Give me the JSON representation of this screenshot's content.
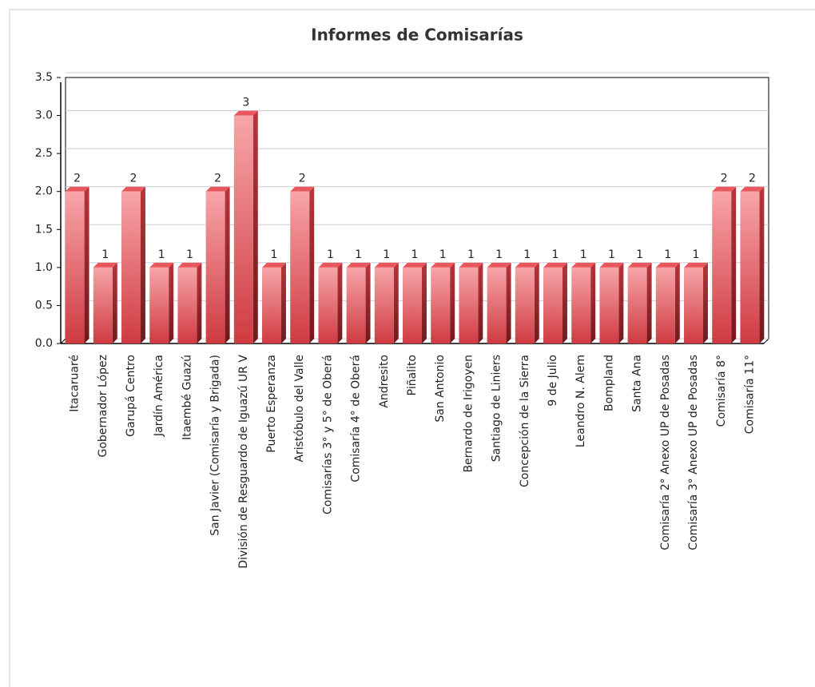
{
  "chart_data": {
    "type": "bar",
    "title": "Informes de Comisarías",
    "categories": [
      "Itacaruaré",
      "Gobernador López",
      "Garupá Centro",
      "Jardín América",
      "Itaembé Guazú",
      "San Javier (Comisaría y Brigada)",
      "División de Resguardo de Iguazú UR V",
      "Puerto Esperanza",
      "Aristóbulo del Valle",
      "Comisarías 3° y 5° de Oberá",
      "Comisaría 4° de Oberá",
      "Andresito",
      "Piñalito",
      "San Antonio",
      "Bernardo de Irigoyen",
      "Santiago de Liniers",
      "Concepción de la Sierra",
      "9 de Julio",
      "Leandro N. Alem",
      "Bompland",
      "Santa Ana",
      "Comisaría 2° Anexo UP de Posadas",
      "Comisaría 3° Anexo UP de Posadas",
      "Comisaría 8°",
      "Comisaría 11°"
    ],
    "values": [
      2,
      1,
      2,
      1,
      1,
      2,
      3,
      1,
      2,
      1,
      1,
      1,
      1,
      1,
      1,
      1,
      1,
      1,
      1,
      1,
      1,
      1,
      1,
      2,
      2
    ],
    "color": "#e0555b",
    "ylim": [
      0,
      3.5
    ],
    "yticks": [
      {
        "value": 0,
        "label": "0.0"
      },
      0.5,
      {
        "value": 1,
        "label": "1.0"
      },
      1.5,
      {
        "value": 2,
        "label": "2.0"
      },
      2.5,
      {
        "value": 3,
        "label": "3.0"
      },
      3.5
    ],
    "grid": true
  }
}
